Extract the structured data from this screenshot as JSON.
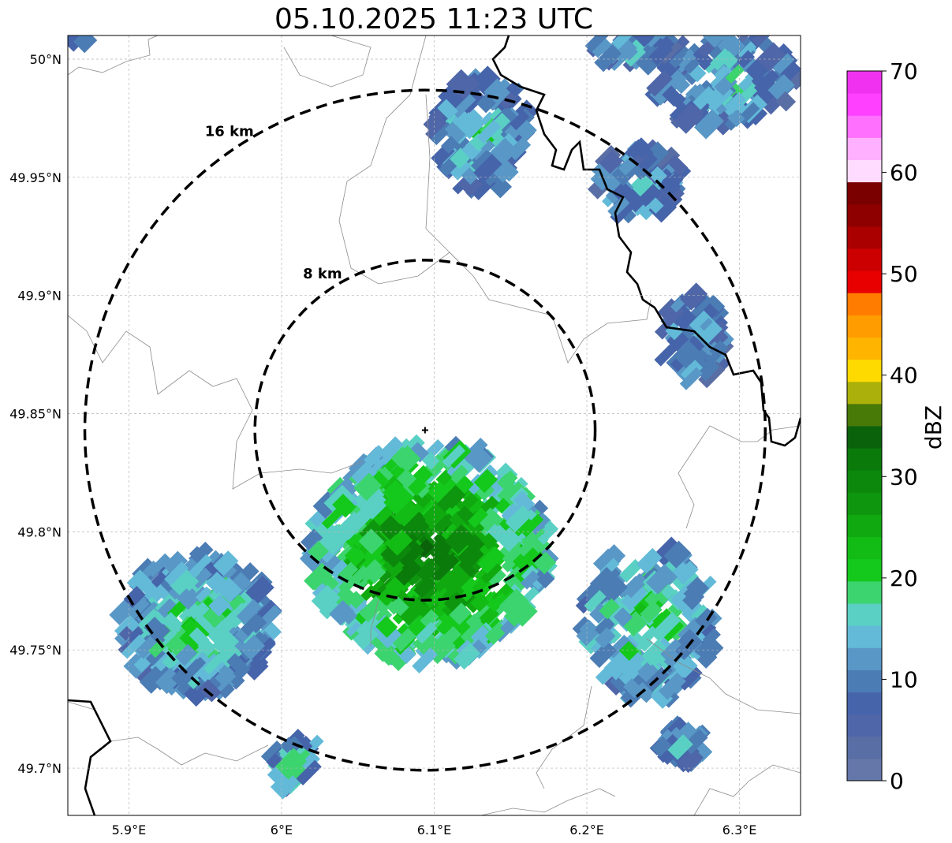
{
  "title": "05.10.2025 11:23 UTC",
  "map": {
    "lon_range": [
      5.86,
      6.34
    ],
    "lat_range": [
      49.68,
      50.01
    ],
    "lat_ticks": [
      {
        "value": 50.0,
        "label": "50°N"
      },
      {
        "value": 49.95,
        "label": "49.95°N"
      },
      {
        "value": 49.9,
        "label": "49.9°N"
      },
      {
        "value": 49.85,
        "label": "49.85°N"
      },
      {
        "value": 49.8,
        "label": "49.8°N"
      },
      {
        "value": 49.75,
        "label": "49.75°N"
      },
      {
        "value": 49.7,
        "label": "49.7°N"
      }
    ],
    "lon_ticks": [
      {
        "value": 5.9,
        "label": "5.9°E"
      },
      {
        "value": 6.0,
        "label": "6°E"
      },
      {
        "value": 6.1,
        "label": "6.1°E"
      },
      {
        "value": 6.2,
        "label": "6.2°E"
      },
      {
        "value": 6.3,
        "label": "6.3°E"
      }
    ],
    "radar_site": {
      "lon": 6.094,
      "lat": 49.843
    },
    "range_rings": [
      {
        "radius_km": 8,
        "label": "8 km"
      },
      {
        "radius_km": 16,
        "label": "16 km"
      }
    ],
    "grid": true
  },
  "colorbar": {
    "label": "dBZ",
    "min": 0,
    "max": 70,
    "tick_labels": [
      "0",
      "10",
      "20",
      "30",
      "40",
      "50",
      "60",
      "70"
    ],
    "bin_colors": [
      "#6477a8",
      "#596ea4",
      "#4f66a8",
      "#4664aa",
      "#4b7cb4",
      "#5897c6",
      "#63bad8",
      "#5ad0c4",
      "#3cd46e",
      "#14c81c",
      "#12bc14",
      "#10aa10",
      "#0e960e",
      "#0c880c",
      "#0a7a0a",
      "#0a620a",
      "#487a08",
      "#acb00a",
      "#ffda00",
      "#ffb400",
      "#ff9c00",
      "#ff7c00",
      "#e80000",
      "#cc0000",
      "#aa0000",
      "#8e0000",
      "#7a0000",
      "#ffdcff",
      "#ffb0ff",
      "#ff70ff",
      "#ff40ff",
      "#f032f0"
    ]
  },
  "colors": {
    "border": "#000000",
    "admin_lines": "#8c8c8c",
    "grid": "#b4b4b4",
    "rings": "#000000"
  }
}
